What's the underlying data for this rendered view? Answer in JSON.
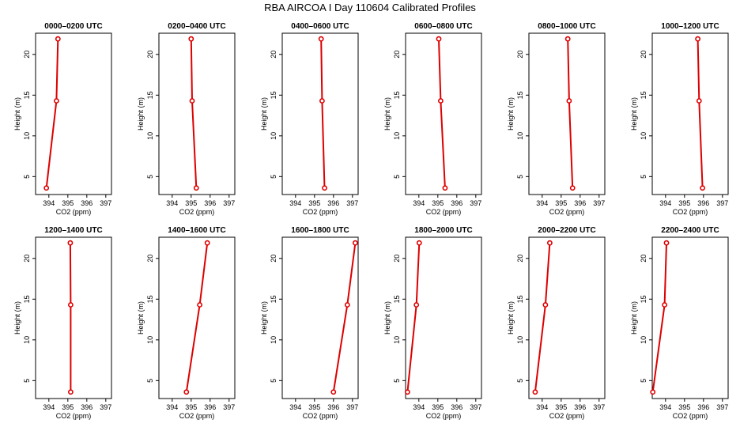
{
  "title": "RBA AIRCOA I  Day 110604  Calibrated Profiles",
  "colors": {
    "series": "#dd0000",
    "axis": "#000000"
  },
  "chart_data": [
    {
      "type": "line",
      "title": "0000–0200 UTC",
      "xlabel": "CO2 (ppm)",
      "ylabel": "Height (m)",
      "xlim": [
        393.3,
        397.3
      ],
      "ylim": [
        2.8,
        22.6
      ],
      "xticks": [
        394,
        395,
        396,
        397
      ],
      "yticks": [
        5,
        10,
        15,
        20
      ],
      "x": [
        393.87,
        394.4,
        394.48
      ],
      "y": [
        3.6,
        14.3,
        21.9
      ]
    },
    {
      "type": "line",
      "title": "0200–0400 UTC",
      "xlabel": "CO2 (ppm)",
      "ylabel": "Height (m)",
      "xlim": [
        393.3,
        397.3
      ],
      "ylim": [
        2.8,
        22.6
      ],
      "xticks": [
        394,
        395,
        396,
        397
      ],
      "yticks": [
        5,
        10,
        15,
        20
      ],
      "x": [
        395.27,
        395.05,
        395.0
      ],
      "y": [
        3.6,
        14.3,
        21.9
      ]
    },
    {
      "type": "line",
      "title": "0400–0600 UTC",
      "xlabel": "CO2 (ppm)",
      "ylabel": "Height (m)",
      "xlim": [
        393.3,
        397.3
      ],
      "ylim": [
        2.8,
        22.6
      ],
      "xticks": [
        394,
        395,
        396,
        397
      ],
      "yticks": [
        5,
        10,
        15,
        20
      ],
      "x": [
        395.53,
        395.4,
        395.35
      ],
      "y": [
        3.6,
        14.3,
        21.9
      ]
    },
    {
      "type": "line",
      "title": "0600–0800 UTC",
      "xlabel": "CO2 (ppm)",
      "ylabel": "Height (m)",
      "xlim": [
        393.3,
        397.3
      ],
      "ylim": [
        2.8,
        22.6
      ],
      "xticks": [
        394,
        395,
        396,
        397
      ],
      "yticks": [
        5,
        10,
        15,
        20
      ],
      "x": [
        395.38,
        395.15,
        395.05
      ],
      "y": [
        3.6,
        14.3,
        21.9
      ]
    },
    {
      "type": "line",
      "title": "0800–1000 UTC",
      "xlabel": "CO2 (ppm)",
      "ylabel": "Height (m)",
      "xlim": [
        393.3,
        397.3
      ],
      "ylim": [
        2.8,
        22.6
      ],
      "xticks": [
        394,
        395,
        396,
        397
      ],
      "yticks": [
        5,
        10,
        15,
        20
      ],
      "x": [
        395.6,
        395.42,
        395.35
      ],
      "y": [
        3.6,
        14.3,
        21.9
      ]
    },
    {
      "type": "line",
      "title": "1000–1200 UTC",
      "xlabel": "CO2 (ppm)",
      "ylabel": "Height (m)",
      "xlim": [
        393.3,
        397.3
      ],
      "ylim": [
        2.8,
        22.6
      ],
      "xticks": [
        394,
        395,
        396,
        397
      ],
      "yticks": [
        5,
        10,
        15,
        20
      ],
      "x": [
        395.95,
        395.77,
        395.7
      ],
      "y": [
        3.6,
        14.3,
        21.9
      ]
    },
    {
      "type": "line",
      "title": "1200–1400 UTC",
      "xlabel": "CO2 (ppm)",
      "ylabel": "Height (m)",
      "xlim": [
        393.3,
        397.3
      ],
      "ylim": [
        2.8,
        22.6
      ],
      "xticks": [
        394,
        395,
        396,
        397
      ],
      "yticks": [
        5,
        10,
        15,
        20
      ],
      "x": [
        395.15,
        395.15,
        395.13
      ],
      "y": [
        3.6,
        14.3,
        21.9
      ]
    },
    {
      "type": "line",
      "title": "1400–1600 UTC",
      "xlabel": "CO2 (ppm)",
      "ylabel": "Height (m)",
      "xlim": [
        393.3,
        397.3
      ],
      "ylim": [
        2.8,
        22.6
      ],
      "xticks": [
        394,
        395,
        396,
        397
      ],
      "yticks": [
        5,
        10,
        15,
        20
      ],
      "x": [
        394.75,
        395.45,
        395.85
      ],
      "y": [
        3.6,
        14.3,
        21.9
      ]
    },
    {
      "type": "line",
      "title": "1600–1800 UTC",
      "xlabel": "CO2 (ppm)",
      "ylabel": "Height (m)",
      "xlim": [
        393.3,
        397.3
      ],
      "ylim": [
        2.8,
        22.6
      ],
      "xticks": [
        394,
        395,
        396,
        397
      ],
      "yticks": [
        5,
        10,
        15,
        20
      ],
      "x": [
        396.0,
        396.73,
        397.15
      ],
      "y": [
        3.6,
        14.3,
        21.9
      ]
    },
    {
      "type": "line",
      "title": "1800–2000 UTC",
      "xlabel": "CO2 (ppm)",
      "ylabel": "Height (m)",
      "xlim": [
        393.3,
        397.3
      ],
      "ylim": [
        2.8,
        22.6
      ],
      "xticks": [
        394,
        395,
        396,
        397
      ],
      "yticks": [
        5,
        10,
        15,
        20
      ],
      "x": [
        393.4,
        393.87,
        394.02
      ],
      "y": [
        3.6,
        14.3,
        21.9
      ]
    },
    {
      "type": "line",
      "title": "2000–2200 UTC",
      "xlabel": "CO2 (ppm)",
      "ylabel": "Height (m)",
      "xlim": [
        393.3,
        397.3
      ],
      "ylim": [
        2.8,
        22.6
      ],
      "xticks": [
        394,
        395,
        396,
        397
      ],
      "yticks": [
        5,
        10,
        15,
        20
      ],
      "x": [
        393.63,
        394.17,
        394.4
      ],
      "y": [
        3.6,
        14.3,
        21.9
      ]
    },
    {
      "type": "line",
      "title": "2200–2400 UTC",
      "xlabel": "CO2 (ppm)",
      "ylabel": "Height (m)",
      "xlim": [
        393.3,
        397.3
      ],
      "ylim": [
        2.8,
        22.6
      ],
      "xticks": [
        394,
        395,
        396,
        397
      ],
      "yticks": [
        5,
        10,
        15,
        20
      ],
      "x": [
        393.33,
        393.95,
        394.05
      ],
      "y": [
        3.6,
        14.3,
        21.9
      ]
    }
  ]
}
